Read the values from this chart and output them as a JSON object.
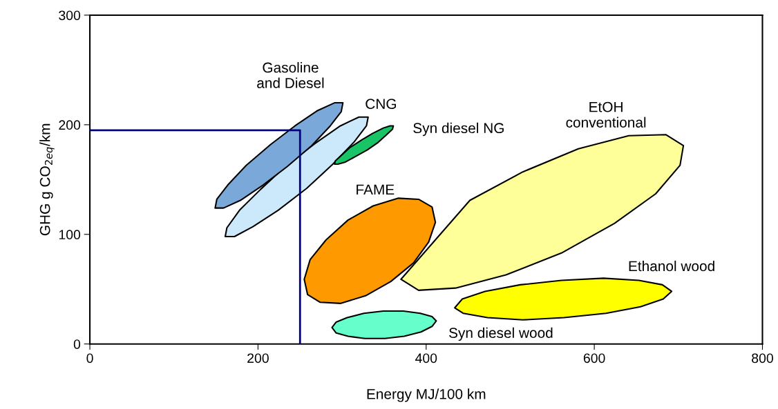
{
  "chart_data": {
    "type": "area",
    "xlabel": "Energy MJ/100 km",
    "ylabel": "GHG g CO$_{2eq}$/km",
    "xlim": [
      0,
      800
    ],
    "xticks": [
      0,
      200,
      400,
      600,
      800
    ],
    "ylim": [
      0,
      300
    ],
    "yticks": [
      0,
      100,
      200,
      300
    ],
    "grid": false,
    "legend": false,
    "series": [
      {
        "name": "EtOH\nconventional",
        "color": "#ffff99",
        "x": [
          706,
          702,
          673,
          624,
          561,
          495,
          435,
          391,
          370,
          374,
          403,
          452,
          515,
          581,
          641,
          685
        ],
        "values": [
          181,
          163,
          137,
          110,
          83,
          63,
          51,
          49,
          59,
          null,
          null,
          131,
          157,
          178,
          190,
          191
        ]
      },
      {
        "name": "FAME",
        "color": "#ff9900",
        "x": [
          407,
          411,
          403,
          385,
          358,
          328,
          298,
          274,
          259,
          255,
          262,
          281,
          307,
          337,
          367,
          391
        ],
        "values": [
          125,
          111,
          93,
          74,
          57,
          44,
          37,
          38,
          45,
          59,
          77,
          95,
          113,
          126,
          133,
          132
        ]
      },
      {
        "name": "Ethanol wood",
        "color": "#ffff00",
        "x": [
          692,
          682,
          655,
          614,
          564,
          515,
          473,
          444,
          434,
          443,
          470,
          512,
          561,
          611,
          653,
          681
        ],
        "values": [
          48,
          41,
          34,
          28,
          24,
          22,
          24,
          28,
          33,
          41,
          48,
          54,
          58,
          60,
          58,
          54
        ]
      },
      {
        "name": "Syn diesel wood",
        "color": "#66ffcc",
        "x": [
          412,
          407,
          394,
          374,
          351,
          327,
          307,
          293,
          288,
          293,
          306,
          326,
          349,
          373,
          393,
          407
        ],
        "values": [
          21,
          16,
          11,
          7,
          5,
          5,
          7,
          10,
          15,
          20,
          24,
          28,
          30,
          30,
          28,
          25
        ]
      },
      {
        "name": "CNG",
        "color": "#cce8fb",
        "x": [
          331,
          329,
          314,
          289,
          258,
          224,
          194,
          172,
          161,
          163,
          178,
          203,
          234,
          268,
          298,
          320
        ],
        "values": [
          207,
          199,
          184,
          164,
          142,
          122,
          107,
          98,
          98,
          106,
          122,
          141,
          163,
          183,
          199,
          207
        ]
      },
      {
        "name": "Gasoline\nand Diesel",
        "color": "#7aa9d9",
        "x": [
          301,
          299,
          286,
          264,
          235,
          206,
          179,
          159,
          149,
          151,
          164,
          186,
          215,
          244,
          271,
          291
        ],
        "values": [
          220,
          212,
          199,
          181,
          162,
          145,
          131,
          124,
          124,
          132,
          145,
          163,
          182,
          199,
          213,
          220
        ]
      },
      {
        "name": "Syn diesel NG",
        "color": "#19c466",
        "x": [
          361,
          360,
          353,
          343,
          330,
          316,
          304,
          295,
          291,
          292,
          299,
          309,
          323,
          336,
          349,
          357
        ],
        "values": [
          199,
          196,
          191,
          184,
          177,
          171,
          166,
          164,
          164,
          167,
          172,
          179,
          186,
          192,
          197,
          199
        ]
      },
      {
        "type": "line",
        "color": "#000080",
        "x": [
          0,
          250,
          250
        ],
        "values": [
          195,
          195,
          0
        ]
      }
    ]
  }
}
